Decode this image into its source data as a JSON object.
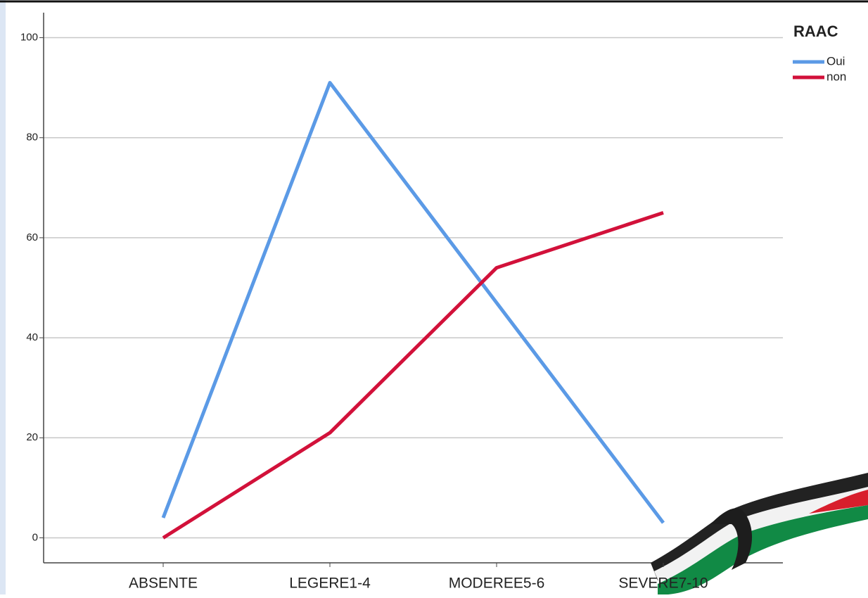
{
  "chart_data": {
    "type": "line",
    "categories": [
      "ABSENTE",
      "LEGERE1-4",
      "MODEREE5-6",
      "SEVERE7-10"
    ],
    "series": [
      {
        "name": "Oui",
        "color": "#5b9ae6",
        "values": [
          4,
          91,
          47,
          3
        ]
      },
      {
        "name": "non",
        "color": "#d2113a",
        "values": [
          0,
          21,
          54,
          65
        ]
      }
    ],
    "legend_title": "RAAC",
    "ylim": [
      -5,
      105
    ],
    "yticks": [
      0,
      20,
      40,
      60,
      80,
      100
    ],
    "grid": true
  }
}
